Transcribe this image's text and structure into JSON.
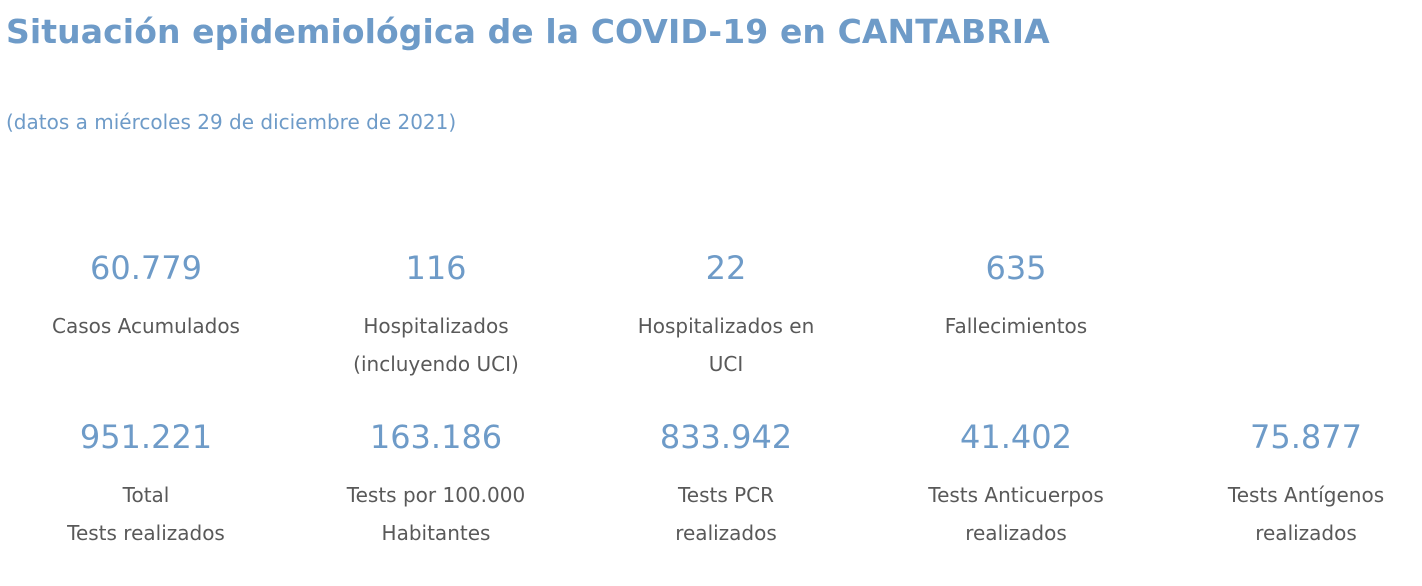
{
  "title": "Situación epidemiológica de la COVID-19 en CANTABRIA",
  "subtitle": "(datos a miércoles 29 de diciembre de 2021)",
  "row1": [
    {
      "value": "60.779",
      "label": "Casos Acumulados"
    },
    {
      "value": "116",
      "label": "Hospitalizados\n(incluyendo UCI)"
    },
    {
      "value": "22",
      "label": "Hospitalizados en\nUCI"
    },
    {
      "value": "635",
      "label": "Fallecimientos"
    }
  ],
  "row2": [
    {
      "value": "951.221",
      "label": "Total\nTests realizados"
    },
    {
      "value": "163.186",
      "label": "Tests por 100.000\nHabitantes"
    },
    {
      "value": "833.942",
      "label": "Tests PCR\nrealizados"
    },
    {
      "value": "41.402",
      "label": "Tests Anticuerpos\nrealizados"
    },
    {
      "value": "75.877",
      "label": "Tests Antígenos\nrealizados"
    }
  ],
  "colors": {
    "accent": "#6e9bc8",
    "text": "#595959"
  }
}
